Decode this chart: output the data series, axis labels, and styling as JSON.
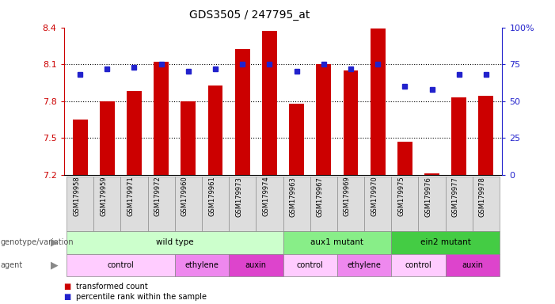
{
  "title": "GDS3505 / 247795_at",
  "samples": [
    "GSM179958",
    "GSM179959",
    "GSM179971",
    "GSM179972",
    "GSM179960",
    "GSM179961",
    "GSM179973",
    "GSM179974",
    "GSM179963",
    "GSM179967",
    "GSM179969",
    "GSM179970",
    "GSM179975",
    "GSM179976",
    "GSM179977",
    "GSM179978"
  ],
  "bar_values": [
    7.65,
    7.8,
    7.88,
    8.12,
    7.8,
    7.93,
    8.22,
    8.37,
    7.78,
    8.1,
    8.05,
    8.39,
    7.47,
    7.21,
    7.83,
    7.84
  ],
  "dot_values": [
    68,
    72,
    73,
    75,
    70,
    72,
    75,
    75,
    70,
    75,
    72,
    75,
    60,
    58,
    68,
    68
  ],
  "ymin": 7.2,
  "ymax": 8.4,
  "yticks": [
    7.2,
    7.5,
    7.8,
    8.1,
    8.4
  ],
  "right_yticks": [
    0,
    25,
    50,
    75,
    100
  ],
  "right_ytick_labels": [
    "0",
    "25",
    "50",
    "75",
    "100%"
  ],
  "bar_color": "#cc0000",
  "dot_color": "#2222cc",
  "genotype_groups": [
    {
      "label": "wild type",
      "start": 0,
      "end": 8,
      "color": "#ccffcc"
    },
    {
      "label": "aux1 mutant",
      "start": 8,
      "end": 12,
      "color": "#88ee88"
    },
    {
      "label": "ein2 mutant",
      "start": 12,
      "end": 16,
      "color": "#44cc44"
    }
  ],
  "agent_groups": [
    {
      "label": "control",
      "start": 0,
      "end": 4,
      "color": "#ffccff"
    },
    {
      "label": "ethylene",
      "start": 4,
      "end": 6,
      "color": "#ee88ee"
    },
    {
      "label": "auxin",
      "start": 6,
      "end": 8,
      "color": "#dd44cc"
    },
    {
      "label": "control",
      "start": 8,
      "end": 10,
      "color": "#ffccff"
    },
    {
      "label": "ethylene",
      "start": 10,
      "end": 12,
      "color": "#ee88ee"
    },
    {
      "label": "control",
      "start": 12,
      "end": 14,
      "color": "#ffccff"
    },
    {
      "label": "auxin",
      "start": 14,
      "end": 16,
      "color": "#dd44cc"
    }
  ],
  "bar_color_label": "transformed count",
  "dot_color_label": "percentile rank within the sample",
  "xlabel_color": "#cc0000",
  "right_ylabel_color": "#2222cc"
}
